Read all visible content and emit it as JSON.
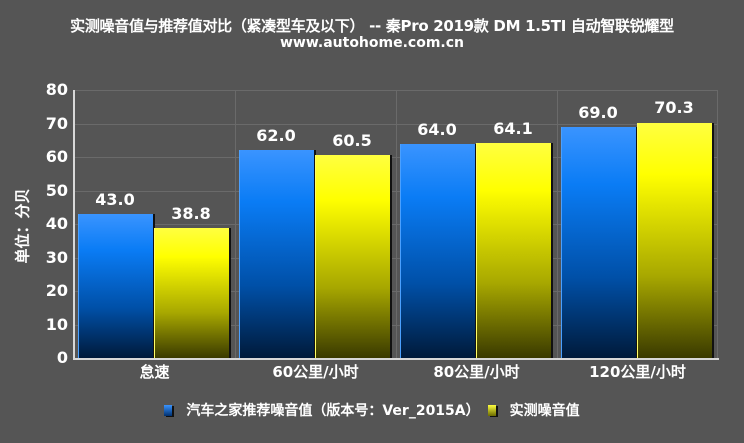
{
  "chart_data": {
    "type": "bar",
    "title": "实测噪音值与推荐值对比（紧凑型车及以下） -- 秦Pro 2019款 DM 1.5TI 自动智联锐耀型",
    "subtitle": "www.autohome.com.cn",
    "xlabel": "",
    "ylabel": "单位：分贝",
    "ylim": [
      0,
      80
    ],
    "yticks": [
      "0",
      "10",
      "20",
      "30",
      "40",
      "50",
      "60",
      "70",
      "80"
    ],
    "grid": true,
    "legend_position": "bottom",
    "categories": [
      "怠速",
      "60公里/小时",
      "80公里/小时",
      "120公里/小时"
    ],
    "series": [
      {
        "name": "汽车之家推荐噪音值（版本号：Ver_2015A）",
        "color": "#0a7cf5",
        "values": [
          43.0,
          62.0,
          64.0,
          69.0
        ],
        "labels": [
          "43.0",
          "62.0",
          "64.0",
          "69.0"
        ]
      },
      {
        "name": "实测噪音值",
        "color": "#ffff00",
        "values": [
          38.8,
          60.5,
          64.1,
          70.3
        ],
        "labels": [
          "38.8",
          "60.5",
          "64.1",
          "70.3"
        ]
      }
    ]
  }
}
